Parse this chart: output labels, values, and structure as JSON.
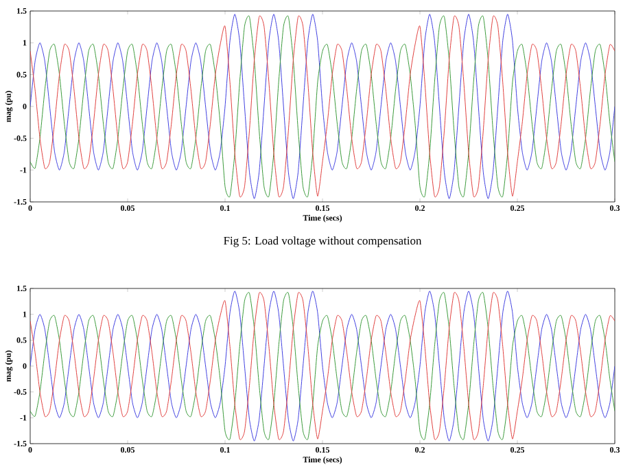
{
  "chart_data": [
    {
      "type": "line",
      "xlabel": "Time (secs)",
      "ylabel": "mag (pu)",
      "annotations": [
        "Fig 5: Load voltage without compensation"
      ],
      "xlim": [
        0,
        0.3
      ],
      "ylim": [
        -1.5,
        1.5
      ],
      "xticks": [
        0,
        0.05,
        0.1,
        0.15,
        0.2,
        0.25,
        0.3
      ],
      "yticks": [
        -1.5,
        -1,
        -0.5,
        0,
        0.5,
        1,
        1.5
      ],
      "x": [
        0,
        0.0025,
        0.005,
        0.0075,
        0.01,
        0.0125,
        0.015,
        0.0175,
        0.02,
        0.0225,
        0.025,
        0.0275,
        0.03,
        0.0325,
        0.035,
        0.0375,
        0.04,
        0.0425,
        0.045,
        0.0475,
        0.05,
        0.0525,
        0.055,
        0.0575,
        0.06,
        0.0625,
        0.065,
        0.0675,
        0.07,
        0.0725,
        0.075,
        0.0775,
        0.08,
        0.0825,
        0.085,
        0.0875,
        0.09,
        0.0925,
        0.095,
        0.0975,
        0.1,
        0.1025,
        0.105,
        0.1075,
        0.11,
        0.1125,
        0.115,
        0.1175,
        0.12,
        0.1225,
        0.125,
        0.1275,
        0.13,
        0.1325,
        0.135,
        0.1375,
        0.14,
        0.1425,
        0.145,
        0.1475,
        0.15,
        0.1525,
        0.155,
        0.1575,
        0.16,
        0.1625,
        0.165,
        0.1675,
        0.17,
        0.1725,
        0.175,
        0.1775,
        0.18,
        0.1825,
        0.185,
        0.1875,
        0.19,
        0.1925,
        0.195,
        0.1975,
        0.2,
        0.2025,
        0.205,
        0.2075,
        0.21,
        0.2125,
        0.215,
        0.2175,
        0.22,
        0.2225,
        0.225,
        0.2275,
        0.23,
        0.2325,
        0.235,
        0.2375,
        0.24,
        0.2425,
        0.245,
        0.2475,
        0.25,
        0.2525,
        0.255,
        0.2575,
        0.26,
        0.2625,
        0.265,
        0.2675,
        0.27,
        0.2725,
        0.275,
        0.2775,
        0.28,
        0.2825,
        0.285,
        0.2875,
        0.29,
        0.2925,
        0.295,
        0.2975,
        0.3
      ],
      "series": [
        {
          "color": "#4040e0",
          "values": [
            0,
            0.71,
            1,
            0.71,
            0,
            -0.71,
            -1,
            -0.71,
            0,
            0.71,
            1,
            0.71,
            0,
            -0.71,
            -1,
            -0.71,
            0,
            0.71,
            1,
            0.71,
            0,
            -0.71,
            -1,
            -0.71,
            0,
            0.71,
            1,
            0.71,
            0,
            -0.71,
            -1,
            -0.71,
            0,
            0.71,
            1,
            0.71,
            0,
            -0.71,
            -1,
            -0.71,
            0,
            1.03,
            1.45,
            1.03,
            0,
            -1.03,
            -1.45,
            -1.03,
            0,
            1.03,
            1.45,
            1.03,
            0,
            -1.03,
            -1.45,
            -1.03,
            0,
            1.03,
            1.45,
            1.03,
            0,
            -0.71,
            -1,
            -0.71,
            0,
            0.71,
            1,
            0.71,
            0,
            -0.71,
            -1,
            -0.71,
            0,
            0.71,
            1,
            0.71,
            0,
            -0.71,
            -1,
            -0.71,
            0,
            1.03,
            1.45,
            1.03,
            0,
            -1.03,
            -1.45,
            -1.03,
            0,
            1.03,
            1.45,
            1.03,
            0,
            -1.03,
            -1.45,
            -1.03,
            0,
            1.03,
            1.45,
            1.03,
            0,
            -0.71,
            -1,
            -0.71,
            0,
            0.71,
            1,
            0.71,
            0,
            -0.71,
            -1,
            -0.71,
            0,
            0.71,
            1,
            0.71,
            0,
            -0.71,
            -1,
            -0.71,
            0
          ]
        },
        {
          "color": "#3a9a3a",
          "values": [
            -0.87,
            -0.97,
            -0.5,
            0.26,
            0.87,
            0.97,
            0.5,
            -0.26,
            -0.87,
            -0.97,
            -0.5,
            0.26,
            0.87,
            0.97,
            0.5,
            -0.26,
            -0.87,
            -0.97,
            -0.5,
            0.26,
            0.87,
            0.97,
            0.5,
            -0.26,
            -0.87,
            -0.97,
            -0.5,
            0.26,
            0.87,
            0.97,
            0.5,
            -0.26,
            -0.87,
            -0.97,
            -0.5,
            0.26,
            0.87,
            0.97,
            0.5,
            -0.26,
            -1.26,
            -1.41,
            -0.73,
            0.38,
            1.26,
            1.41,
            0.73,
            -0.38,
            -1.26,
            -1.41,
            -0.73,
            0.38,
            1.26,
            1.41,
            0.73,
            -0.38,
            -1.26,
            -1.41,
            -0.73,
            0.38,
            0.87,
            0.97,
            0.5,
            -0.26,
            -0.87,
            -0.97,
            -0.5,
            0.26,
            0.87,
            0.97,
            0.5,
            -0.26,
            -0.87,
            -0.97,
            -0.5,
            0.26,
            0.87,
            0.97,
            0.5,
            -0.26,
            -1.26,
            -1.41,
            -0.73,
            0.38,
            1.26,
            1.41,
            0.73,
            -0.38,
            -1.26,
            -1.41,
            -0.73,
            0.38,
            1.26,
            1.41,
            0.73,
            -0.38,
            -1.26,
            -1.41,
            -0.73,
            0.38,
            0.87,
            0.97,
            0.5,
            -0.26,
            -0.87,
            -0.97,
            -0.5,
            0.26,
            0.87,
            0.97,
            0.5,
            -0.26,
            -0.87,
            -0.97,
            -0.5,
            0.26,
            0.87,
            0.97,
            0.5,
            -0.26,
            -0.87
          ]
        },
        {
          "color": "#e0403f",
          "values": [
            0.87,
            0.26,
            -0.5,
            -0.97,
            -0.87,
            -0.26,
            0.5,
            0.97,
            0.87,
            0.26,
            -0.5,
            -0.97,
            -0.87,
            -0.26,
            0.5,
            0.97,
            0.87,
            0.26,
            -0.5,
            -0.97,
            -0.87,
            -0.26,
            0.5,
            0.97,
            0.87,
            0.26,
            -0.5,
            -0.97,
            -0.87,
            -0.26,
            0.5,
            0.97,
            0.87,
            0.26,
            -0.5,
            -0.97,
            -0.87,
            -0.26,
            0.5,
            0.97,
            1.26,
            0.38,
            -0.73,
            -1.41,
            -1.26,
            -0.38,
            0.73,
            1.41,
            1.26,
            0.38,
            -0.73,
            -1.41,
            -1.26,
            -0.38,
            0.73,
            1.41,
            1.26,
            0.38,
            -0.73,
            -1.41,
            -0.87,
            -0.26,
            0.5,
            0.97,
            0.87,
            0.26,
            -0.5,
            -0.97,
            -0.87,
            -0.26,
            0.5,
            0.97,
            0.87,
            0.26,
            -0.5,
            -0.97,
            -0.87,
            -0.26,
            0.5,
            0.97,
            1.26,
            0.38,
            -0.73,
            -1.41,
            -1.26,
            -0.38,
            0.73,
            1.41,
            1.26,
            0.38,
            -0.73,
            -1.41,
            -1.26,
            -0.38,
            0.73,
            1.41,
            1.26,
            0.38,
            -0.73,
            -1.41,
            -0.87,
            -0.26,
            0.5,
            0.97,
            0.87,
            0.26,
            -0.5,
            -0.97,
            -0.87,
            -0.26,
            0.5,
            0.97,
            0.87,
            0.26,
            -0.5,
            -0.97,
            -0.87,
            -0.26,
            0.5,
            0.97,
            0.87
          ]
        }
      ]
    },
    {
      "type": "line",
      "xlabel": "Time (secs)",
      "ylabel": "mag (pu)",
      "xlim": [
        0,
        0.3
      ],
      "ylim": [
        -1.5,
        1.5
      ],
      "xticks": [
        0,
        0.05,
        0.1,
        0.15,
        0.2,
        0.25,
        0.3
      ],
      "yticks": [
        -1.5,
        -1,
        -0.5,
        0,
        0.5,
        1,
        1.5
      ],
      "x": [
        0,
        0.0025,
        0.005,
        0.0075,
        0.01,
        0.0125,
        0.015,
        0.0175,
        0.02,
        0.0225,
        0.025,
        0.0275,
        0.03,
        0.0325,
        0.035,
        0.0375,
        0.04,
        0.0425,
        0.045,
        0.0475,
        0.05,
        0.0525,
        0.055,
        0.0575,
        0.06,
        0.0625,
        0.065,
        0.0675,
        0.07,
        0.0725,
        0.075,
        0.0775,
        0.08,
        0.0825,
        0.085,
        0.0875,
        0.09,
        0.0925,
        0.095,
        0.0975,
        0.1,
        0.1025,
        0.105,
        0.1075,
        0.11,
        0.1125,
        0.115,
        0.1175,
        0.12,
        0.1225,
        0.125,
        0.1275,
        0.13,
        0.1325,
        0.135,
        0.1375,
        0.14,
        0.1425,
        0.145,
        0.1475,
        0.15,
        0.1525,
        0.155,
        0.1575,
        0.16,
        0.1625,
        0.165,
        0.1675,
        0.17,
        0.1725,
        0.175,
        0.1775,
        0.18,
        0.1825,
        0.185,
        0.1875,
        0.19,
        0.1925,
        0.195,
        0.1975,
        0.2,
        0.2025,
        0.205,
        0.2075,
        0.21,
        0.2125,
        0.215,
        0.2175,
        0.22,
        0.2225,
        0.225,
        0.2275,
        0.23,
        0.2325,
        0.235,
        0.2375,
        0.24,
        0.2425,
        0.245,
        0.2475,
        0.25,
        0.2525,
        0.255,
        0.2575,
        0.26,
        0.2625,
        0.265,
        0.2675,
        0.27,
        0.2725,
        0.275,
        0.2775,
        0.28,
        0.2825,
        0.285,
        0.2875,
        0.29,
        0.2925,
        0.295,
        0.2975,
        0.3
      ],
      "series": [
        {
          "color": "#4040e0",
          "values": [
            0,
            0.71,
            1,
            0.71,
            0,
            -0.71,
            -1,
            -0.71,
            0,
            0.71,
            1,
            0.71,
            0,
            -0.71,
            -1,
            -0.71,
            0,
            0.71,
            1,
            0.71,
            0,
            -0.71,
            -1,
            -0.71,
            0,
            0.71,
            1,
            0.71,
            0,
            -0.71,
            -1,
            -0.71,
            0,
            0.71,
            1,
            0.71,
            0,
            -0.71,
            -1,
            -0.71,
            0,
            1.03,
            1.45,
            1.03,
            0,
            -1.03,
            -1.45,
            -1.03,
            0,
            1.03,
            1.45,
            1.03,
            0,
            -1.03,
            -1.45,
            -1.03,
            0,
            1.03,
            1.45,
            1.03,
            0,
            -0.71,
            -1,
            -0.71,
            0,
            0.71,
            1,
            0.71,
            0,
            -0.71,
            -1,
            -0.71,
            0,
            0.71,
            1,
            0.71,
            0,
            -0.71,
            -1,
            -0.71,
            0,
            1.03,
            1.45,
            1.03,
            0,
            -1.03,
            -1.45,
            -1.03,
            0,
            1.03,
            1.45,
            1.03,
            0,
            -1.03,
            -1.45,
            -1.03,
            0,
            1.03,
            1.45,
            1.03,
            0,
            -0.71,
            -1,
            -0.71,
            0,
            0.71,
            1,
            0.71,
            0,
            -0.71,
            -1,
            -0.71,
            0,
            0.71,
            1,
            0.71,
            0,
            -0.71,
            -1,
            -0.71,
            0
          ]
        },
        {
          "color": "#3a9a3a",
          "values": [
            -0.87,
            -0.97,
            -0.5,
            0.26,
            0.87,
            0.97,
            0.5,
            -0.26,
            -0.87,
            -0.97,
            -0.5,
            0.26,
            0.87,
            0.97,
            0.5,
            -0.26,
            -0.87,
            -0.97,
            -0.5,
            0.26,
            0.87,
            0.97,
            0.5,
            -0.26,
            -0.87,
            -0.97,
            -0.5,
            0.26,
            0.87,
            0.97,
            0.5,
            -0.26,
            -0.87,
            -0.97,
            -0.5,
            0.26,
            0.87,
            0.97,
            0.5,
            -0.26,
            -1.26,
            -1.41,
            -0.73,
            0.38,
            1.26,
            1.41,
            0.73,
            -0.38,
            -1.26,
            -1.41,
            -0.73,
            0.38,
            1.26,
            1.41,
            0.73,
            -0.38,
            -1.26,
            -1.41,
            -0.73,
            0.38,
            0.87,
            0.97,
            0.5,
            -0.26,
            -0.87,
            -0.97,
            -0.5,
            0.26,
            0.87,
            0.97,
            0.5,
            -0.26,
            -0.87,
            -0.97,
            -0.5,
            0.26,
            0.87,
            0.97,
            0.5,
            -0.26,
            -1.26,
            -1.41,
            -0.73,
            0.38,
            1.26,
            1.41,
            0.73,
            -0.38,
            -1.26,
            -1.41,
            -0.73,
            0.38,
            1.26,
            1.41,
            0.73,
            -0.38,
            -1.26,
            -1.41,
            -0.73,
            0.38,
            0.87,
            0.97,
            0.5,
            -0.26,
            -0.87,
            -0.97,
            -0.5,
            0.26,
            0.87,
            0.97,
            0.5,
            -0.26,
            -0.87,
            -0.97,
            -0.5,
            0.26,
            0.87,
            0.97,
            0.5,
            -0.26,
            -0.87
          ]
        },
        {
          "color": "#e0403f",
          "values": [
            0.87,
            0.26,
            -0.5,
            -0.97,
            -0.87,
            -0.26,
            0.5,
            0.97,
            0.87,
            0.26,
            -0.5,
            -0.97,
            -0.87,
            -0.26,
            0.5,
            0.97,
            0.87,
            0.26,
            -0.5,
            -0.97,
            -0.87,
            -0.26,
            0.5,
            0.97,
            0.87,
            0.26,
            -0.5,
            -0.97,
            -0.87,
            -0.26,
            0.5,
            0.97,
            0.87,
            0.26,
            -0.5,
            -0.97,
            -0.87,
            -0.26,
            0.5,
            0.97,
            1.26,
            0.38,
            -0.73,
            -1.41,
            -1.26,
            -0.38,
            0.73,
            1.41,
            1.26,
            0.38,
            -0.73,
            -1.41,
            -1.26,
            -0.38,
            0.73,
            1.41,
            1.26,
            0.38,
            -0.73,
            -1.41,
            -0.87,
            -0.26,
            0.5,
            0.97,
            0.87,
            0.26,
            -0.5,
            -0.97,
            -0.87,
            -0.26,
            0.5,
            0.97,
            0.87,
            0.26,
            -0.5,
            -0.97,
            -0.87,
            -0.26,
            0.5,
            0.97,
            1.26,
            0.38,
            -0.73,
            -1.41,
            -1.26,
            -0.38,
            0.73,
            1.41,
            1.26,
            0.38,
            -0.73,
            -1.41,
            -1.26,
            -0.38,
            0.73,
            1.41,
            1.26,
            0.38,
            -0.73,
            -1.41,
            -0.87,
            -0.26,
            0.5,
            0.97,
            0.87,
            0.26,
            -0.5,
            -0.97,
            -0.87,
            -0.26,
            0.5,
            0.97,
            0.87,
            0.26,
            -0.5,
            -0.97,
            -0.87,
            -0.26,
            0.5,
            0.97,
            0.87
          ]
        }
      ]
    }
  ]
}
